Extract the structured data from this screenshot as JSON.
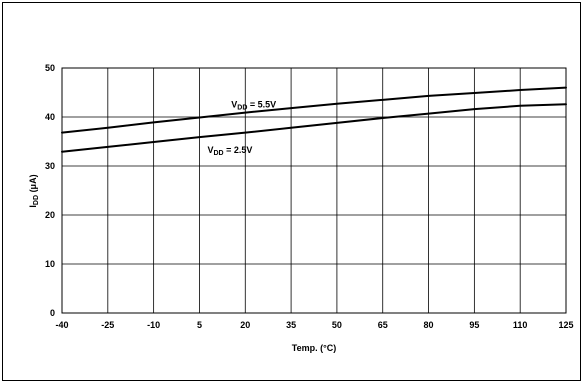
{
  "chart_data": {
    "type": "line",
    "title": "",
    "xlabel": "Temp. (°C)",
    "ylabel": {
      "main": "I",
      "sub": "DD",
      "unit": " (μA)"
    },
    "categories": [
      "-40",
      "-25",
      "-10",
      "5",
      "20",
      "35",
      "50",
      "65",
      "80",
      "95",
      "110",
      "125"
    ],
    "x": [
      -40,
      -25,
      -10,
      5,
      20,
      35,
      50,
      65,
      80,
      95,
      110,
      125
    ],
    "ylim": [
      0,
      50
    ],
    "yticks": [
      0,
      10,
      20,
      30,
      40,
      50
    ],
    "grid": true,
    "series": [
      {
        "name": "VDD = 5.5V",
        "label": {
          "main": "V",
          "sub": "DD",
          "rest": " = 5.5V"
        },
        "values": [
          36.8,
          37.8,
          38.9,
          39.9,
          40.9,
          41.8,
          42.7,
          43.5,
          44.3,
          44.9,
          45.5,
          46.0
        ],
        "color": "#000000"
      },
      {
        "name": "VDD = 2.5V",
        "label": {
          "main": "V",
          "sub": "DD",
          "rest": " = 2.5V"
        },
        "values": [
          32.9,
          33.9,
          34.9,
          35.9,
          36.8,
          37.8,
          38.8,
          39.8,
          40.7,
          41.6,
          42.3,
          42.6
        ],
        "color": "#000000"
      }
    ]
  }
}
